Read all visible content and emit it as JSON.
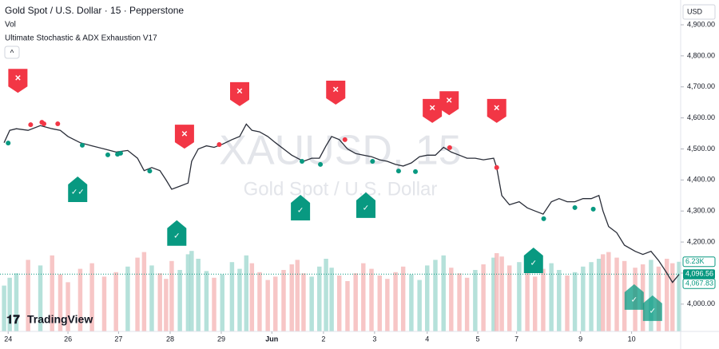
{
  "chart_data": {
    "type": "line",
    "title": "Gold Spot / U.S. Dollar · 15 · Pepperstone",
    "indicators": [
      "Vol",
      "Ultimate Stochastic & ADX Exhaustion V17"
    ],
    "currency": "USD",
    "watermark": [
      "XAUUSD, 15",
      "Gold Spot / U.S. Dollar"
    ],
    "logo": "TradingView",
    "collapse_button": "^",
    "xlim": [
      -0.16,
      13.16
    ],
    "xticks": [
      {
        "value": 0,
        "label": "24"
      },
      {
        "value": 1.17,
        "label": "26"
      },
      {
        "value": 2.16,
        "label": "27"
      },
      {
        "value": 3.17,
        "label": "28"
      },
      {
        "value": 4.17,
        "label": "29"
      },
      {
        "value": 5.16,
        "label": "Jun"
      },
      {
        "value": 6.17,
        "label": "2"
      },
      {
        "value": 7.17,
        "label": "3"
      },
      {
        "value": 8.2,
        "label": "4"
      },
      {
        "value": 9.19,
        "label": "5"
      },
      {
        "value": 9.95,
        "label": "7"
      },
      {
        "value": 11.2,
        "label": "9"
      },
      {
        "value": 12.2,
        "label": "10"
      }
    ],
    "ylim": [
      3912,
      4967
    ],
    "yticks": [
      {
        "value": 4000,
        "label": "4,000.00"
      },
      {
        "value": 4100,
        "label": "4,100.00"
      },
      {
        "value": 4200,
        "label": "4,200.00"
      },
      {
        "value": 4300,
        "label": "4,300.00"
      },
      {
        "value": 4400,
        "label": "4,400.00"
      },
      {
        "value": 4500,
        "label": "4,500.00"
      },
      {
        "value": 4600,
        "label": "4,600.00"
      },
      {
        "value": 4700,
        "label": "4,700.00"
      },
      {
        "value": 4800,
        "label": "4,800.00"
      },
      {
        "value": 4900,
        "label": "4,900.00"
      }
    ],
    "x": [
      -0.08,
      0.03,
      0.16,
      0.39,
      0.63,
      0.86,
      1.02,
      1.17,
      1.41,
      1.64,
      1.88,
      2.11,
      2.34,
      2.53,
      2.66,
      2.81,
      2.97,
      3.09,
      3.2,
      3.36,
      3.52,
      3.59,
      3.72,
      3.88,
      4.03,
      4.19,
      4.38,
      4.53,
      4.66,
      4.77,
      4.92,
      5.08,
      5.23,
      5.39,
      5.55,
      5.66,
      5.78,
      5.94,
      6.09,
      6.22,
      6.33,
      6.48,
      6.64,
      6.8,
      6.95,
      7.11,
      7.27,
      7.42,
      7.58,
      7.73,
      7.89,
      8.05,
      8.2,
      8.36,
      8.52,
      8.67,
      8.83,
      8.98,
      9.14,
      9.3,
      9.5,
      9.56,
      9.66,
      9.81,
      10,
      10.16,
      10.31,
      10.47,
      10.63,
      10.78,
      10.94,
      11.09,
      11.25,
      11.41,
      11.56,
      11.64,
      11.75,
      11.91,
      12.06,
      12.27,
      12.42,
      12.58,
      12.73,
      12.89,
      13,
      13.13
    ],
    "series": [
      {
        "name": "XAUUSD",
        "color": "#2a2e39",
        "values": [
          4520,
          4560,
          4565,
          4560,
          4575,
          4565,
          4560,
          4540,
          4520,
          4510,
          4500,
          4490,
          4495,
          4470,
          4430,
          4440,
          4430,
          4400,
          4370,
          4380,
          4390,
          4460,
          4500,
          4510,
          4505,
          4515,
          4530,
          4540,
          4580,
          4560,
          4555,
          4540,
          4520,
          4500,
          4480,
          4470,
          4460,
          4470,
          4470,
          4510,
          4540,
          4530,
          4500,
          4485,
          4480,
          4475,
          4465,
          4460,
          4450,
          4445,
          4455,
          4475,
          4480,
          4480,
          4505,
          4490,
          4480,
          4470,
          4470,
          4465,
          4470,
          4440,
          4350,
          4320,
          4330,
          4310,
          4300,
          4290,
          4330,
          4340,
          4330,
          4330,
          4340,
          4340,
          4350,
          4300,
          4250,
          4230,
          4190,
          4170,
          4160,
          4170,
          4140,
          4100,
          4070,
          4096
        ]
      },
      {
        "name": "Vol",
        "color": "#c8ccd6",
        "values": [
          4.1,
          4.8,
          5.2,
          6.4,
          5.9,
          6.8,
          5.1,
          4.4,
          5.6,
          6.1,
          4.9,
          5.3,
          5.8,
          6.6,
          7.1,
          5.9,
          5.2,
          4.7,
          6.3,
          5.5,
          6.9,
          7.2,
          6.5,
          5.4,
          4.8,
          5.1,
          6.2,
          5.6,
          6.8,
          6.1,
          5.3,
          4.6,
          4.9,
          5.5,
          6.0,
          6.4,
          5.2,
          4.9,
          5.8,
          6.5,
          5.7,
          5.0,
          4.5,
          5.2,
          6.1,
          5.6,
          5.0,
          4.7,
          5.3,
          5.8,
          5.1,
          4.6,
          5.9,
          6.4,
          6.8,
          5.7,
          5.2,
          4.8,
          5.5,
          6.0,
          6.6,
          7.0,
          6.7,
          5.9,
          6.2,
          5.4,
          4.9,
          5.6,
          6.1,
          5.5,
          5.0,
          5.3,
          5.8,
          6.2,
          6.5,
          6.9,
          7.1,
          6.6,
          6.3,
          5.7,
          6.0,
          6.4,
          5.8,
          6.5,
          6.1,
          6.23
        ]
      }
    ],
    "vlim": [
      0,
      7.5
    ],
    "last_price": [
      {
        "value": 4096.56,
        "label": "4,096.56"
      },
      {
        "value": 4067.83,
        "label": "4,067.83"
      }
    ],
    "last_volume": {
      "value": 6.23,
      "label": "6.23K"
    },
    "sell_signals": {
      "label": "✕",
      "x": [
        0.19,
        3.45,
        4.53,
        6.41,
        8.3,
        8.63,
        9.56
      ],
      "y": [
        4722,
        4542,
        4679,
        4684,
        4625,
        4650,
        4625
      ]
    },
    "buy_signals": {
      "labels": [
        "✓✓",
        "✓",
        "✓",
        "✓",
        "✓",
        "✓",
        "✓"
      ],
      "x": [
        1.36,
        3.3,
        5.72,
        7,
        10.28,
        12.25,
        12.61
      ],
      "y": [
        4370,
        4229,
        4311,
        4319,
        4141,
        4023,
        3987
      ]
    },
    "red_dots": {
      "color": "#f23645",
      "x": [
        0.44,
        0.66,
        0.7,
        0.97,
        4.13,
        6.59,
        8.64,
        9.56
      ],
      "y": [
        4578,
        4586,
        4581,
        4581,
        4514,
        4530,
        4504,
        4440
      ]
    },
    "green_dots": {
      "color": "#089981",
      "x": [
        0,
        1.45,
        1.95,
        2.14,
        2.2,
        2.77,
        5.75,
        6.11,
        7.13,
        7.64,
        7.97,
        10.48,
        11.09,
        11.45
      ],
      "y": [
        4519,
        4512,
        4481,
        4483,
        4486,
        4429,
        4460,
        4450,
        4460,
        4429,
        4427,
        4275,
        4311,
        4306
      ]
    }
  }
}
